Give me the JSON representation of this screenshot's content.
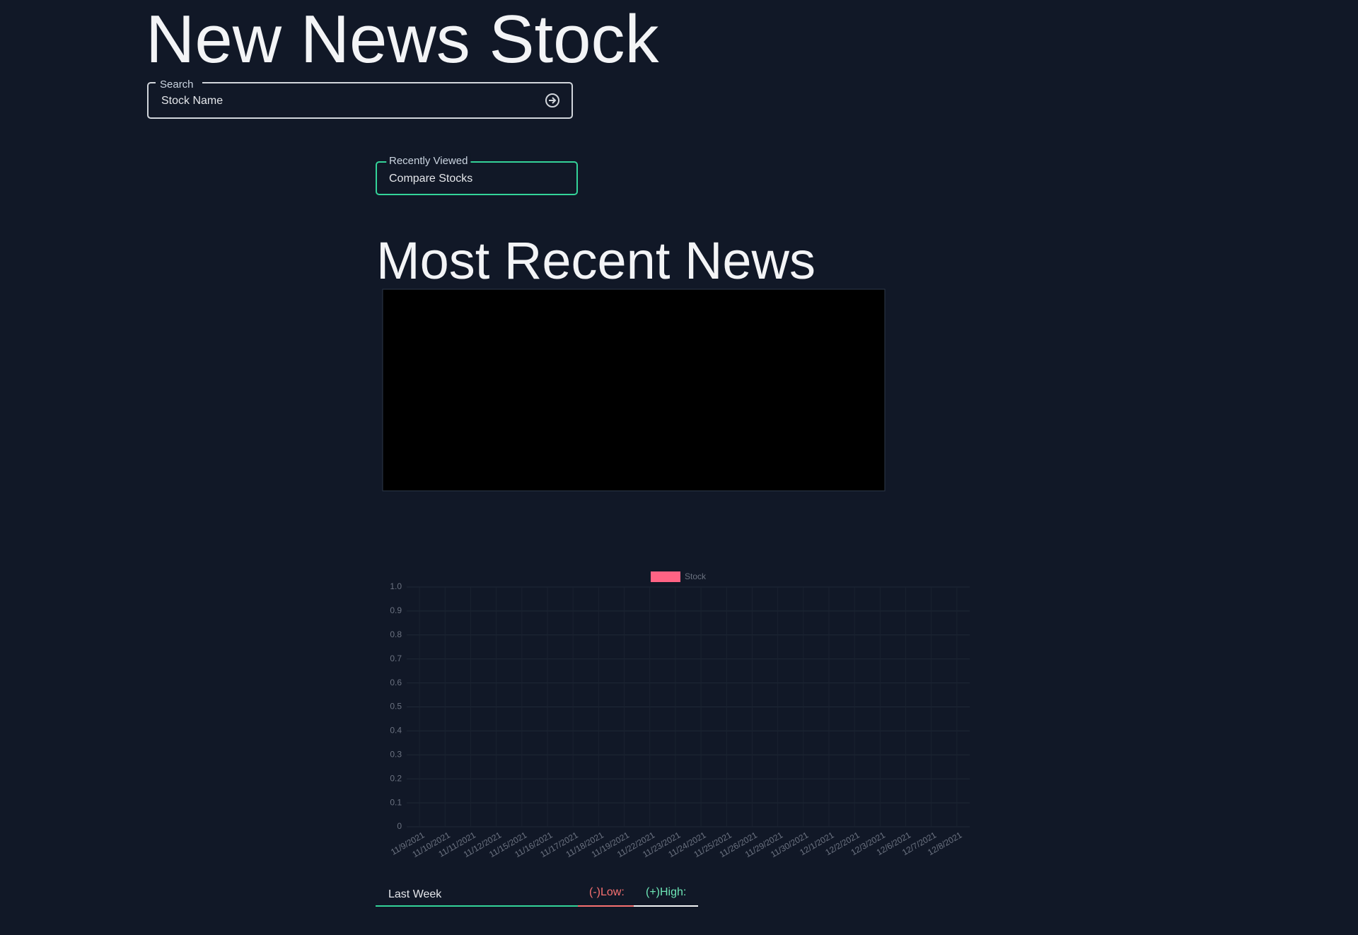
{
  "header": {
    "title": "New News Stock"
  },
  "search": {
    "label": "Search",
    "placeholder": "Stock Name"
  },
  "recent": {
    "label": "Recently Viewed",
    "value": "Compare Stocks"
  },
  "news": {
    "title": "Most Recent News"
  },
  "chart_data": {
    "type": "bar",
    "categories": [
      "11/9/2021",
      "11/10/2021",
      "11/11/2021",
      "11/12/2021",
      "11/15/2021",
      "11/16/2021",
      "11/17/2021",
      "11/18/2021",
      "11/19/2021",
      "11/22/2021",
      "11/23/2021",
      "11/24/2021",
      "11/25/2021",
      "11/26/2021",
      "11/29/2021",
      "11/30/2021",
      "12/1/2021",
      "12/2/2021",
      "12/3/2021",
      "12/6/2021",
      "12/7/2021",
      "12/8/2021"
    ],
    "series": [
      {
        "name": "Stock",
        "color": "#ff6384",
        "values": [
          null,
          null,
          null,
          null,
          null,
          null,
          null,
          null,
          null,
          null,
          null,
          null,
          null,
          null,
          null,
          null,
          null,
          null,
          null,
          null,
          null,
          null
        ]
      }
    ],
    "ylim": [
      0,
      1
    ],
    "yticks": [
      0,
      0.1,
      0.2,
      0.3,
      0.4,
      0.5,
      0.6,
      0.7,
      0.8,
      0.9,
      {
        "value": 1,
        "label": "1.0"
      }
    ],
    "grid": true,
    "legend": "top"
  },
  "tabs": {
    "period": "Last Week",
    "low": "(-)Low:",
    "high": "(+)High:"
  }
}
